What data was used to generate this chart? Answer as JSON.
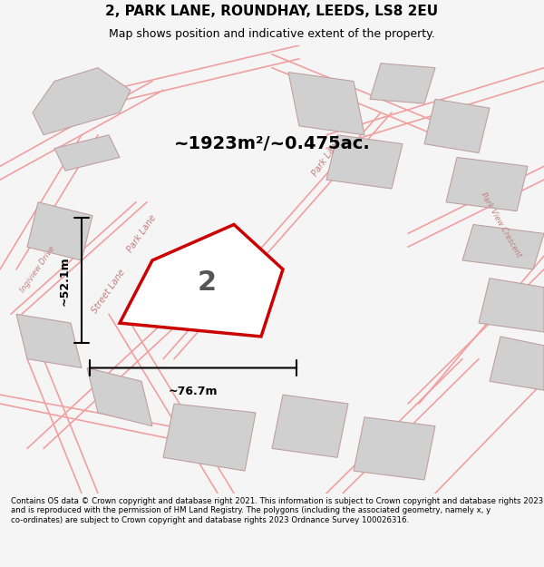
{
  "title": "2, PARK LANE, ROUNDHAY, LEEDS, LS8 2EU",
  "subtitle": "Map shows position and indicative extent of the property.",
  "area_label": "~1923m²/~0.475ac.",
  "property_number": "2",
  "dim_width": "~76.7m",
  "dim_height": "~52.1m",
  "footer": "Contains OS data © Crown copyright and database right 2021. This information is subject to Crown copyright and database rights 2023 and is reproduced with the permission of HM Land Registry. The polygons (including the associated geometry, namely x, y co-ordinates) are subject to Crown copyright and database rights 2023 Ordnance Survey 100026316.",
  "bg_color": "#f5f5f5",
  "map_bg": "#ffffff",
  "property_fill": "#ffffff",
  "property_edge": "#cc0000",
  "road_color": "#f0a0a0",
  "building_color": "#d0d0d0",
  "building_edge": "#c0a0a0",
  "dim_line_color": "#000000",
  "title_color": "#000000",
  "footer_color": "#000000",
  "area_label_color": "#000000",
  "road_label_color": "#c08080"
}
